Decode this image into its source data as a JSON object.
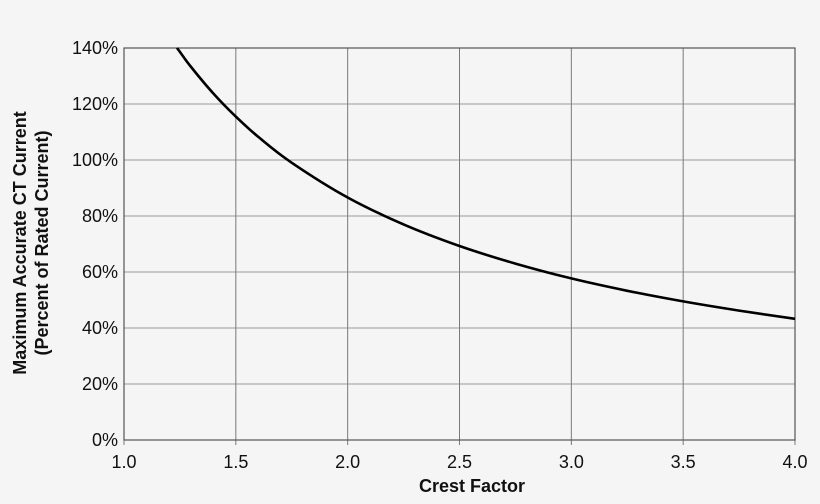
{
  "chart_data": {
    "type": "line",
    "title": "",
    "xlabel": "Crest Factor",
    "ylabel_line1": "Maximum Accurate CT Current",
    "ylabel_line2": "(Percent of Rated Current)",
    "xlim": [
      1.0,
      4.0
    ],
    "ylim": [
      0,
      140
    ],
    "grid": true,
    "legend": "none",
    "x_ticks": [
      "1.0",
      "1.5",
      "2.0",
      "2.5",
      "3.0",
      "3.5",
      "4.0"
    ],
    "y_ticks": [
      "0%",
      "20%",
      "40%",
      "60%",
      "80%",
      "100%",
      "120%",
      "140%"
    ],
    "series": [
      {
        "name": "Maximum Accurate CT Current",
        "color": "#000000",
        "x": [
          1.237,
          1.25,
          1.3,
          1.4,
          1.5,
          1.6,
          1.75,
          2.0,
          2.25,
          2.5,
          2.75,
          3.0,
          3.25,
          3.5,
          3.75,
          4.0
        ],
        "y": [
          140.0,
          138.6,
          133.2,
          123.7,
          115.5,
          108.3,
          99.0,
          86.6,
          77.0,
          69.3,
          63.0,
          57.7,
          53.3,
          49.5,
          46.2,
          43.3
        ]
      }
    ]
  }
}
